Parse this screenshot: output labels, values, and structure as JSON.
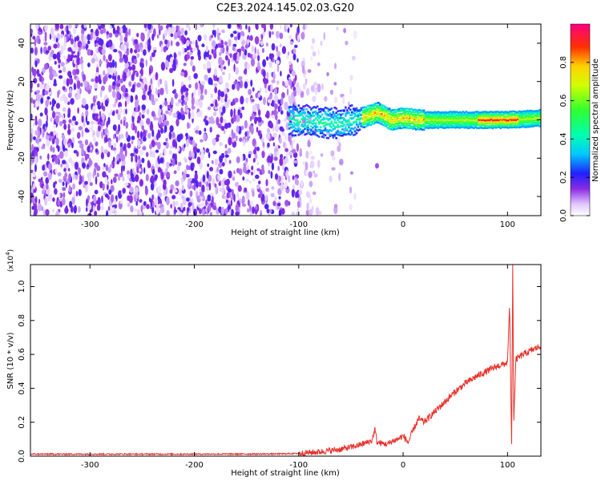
{
  "title": "C2E3.2024.145.02.03.G20",
  "chart_data": [
    {
      "type": "heatmap",
      "xlabel": "Height of straight line (km)",
      "ylabel": "Frequency (Hz)",
      "xlim": [
        -357,
        132
      ],
      "ylim": [
        -50,
        50
      ],
      "xticks": [
        -300,
        -200,
        -100,
        0,
        100
      ],
      "yticks": [
        -40,
        -20,
        0,
        20,
        40
      ],
      "colorbar": {
        "label": "Normalized spectral amplitude",
        "ticks": [
          "0.0",
          "0.2",
          "0.4",
          "0.6",
          "0.8"
        ],
        "tick_values": [
          0.0,
          0.2,
          0.4,
          0.6,
          0.8
        ],
        "range": [
          0,
          1
        ]
      },
      "regions": [
        {
          "x_range": [
            -357,
            -100
          ],
          "freq_range": [
            -50,
            50
          ],
          "amplitude_range": [
            0.02,
            0.25
          ],
          "description_level": "noise"
        },
        {
          "x_range": [
            -100,
            -45
          ],
          "freq_range": [
            -50,
            50
          ],
          "amplitude_range": [
            0.02,
            0.15
          ],
          "description_level": "sparse noise"
        },
        {
          "x_range": [
            -110,
            132
          ],
          "freq_range": [
            -3,
            3
          ],
          "amplitude_range": [
            0.2,
            0.95
          ],
          "description_level": "signal band"
        }
      ],
      "signal_center_freq": [
        {
          "x": -105,
          "freq": 0
        },
        {
          "x": -60,
          "freq": -2
        },
        {
          "x": -40,
          "freq": 1
        },
        {
          "x": -25,
          "freq": 4
        },
        {
          "x": -12,
          "freq": 0
        },
        {
          "x": 0,
          "freq": 1
        },
        {
          "x": 15,
          "freq": 0
        },
        {
          "x": 100,
          "freq": 0
        },
        {
          "x": 132,
          "freq": 1
        }
      ],
      "isolated_feature": {
        "x": -25,
        "freq": -24
      }
    },
    {
      "type": "line",
      "xlabel": "Height of straight line (km)",
      "ylabel": "SNR (10 * v/v)",
      "scale_label": "(x10^4)",
      "xlim": [
        -357,
        132
      ],
      "ylim": [
        0,
        1.13
      ],
      "xticks": [
        -300,
        -200,
        -100,
        0,
        100
      ],
      "yticks": [
        "0.0",
        "0.2",
        "0.4",
        "0.6",
        "0.8",
        "1.0"
      ],
      "ytick_values": [
        0.0,
        0.2,
        0.4,
        0.6,
        0.8,
        1.0
      ],
      "series": [
        {
          "color": "#e8302a",
          "points": [
            [
              -357,
              0.012
            ],
            [
              -300,
              0.012
            ],
            [
              -200,
              0.012
            ],
            [
              -120,
              0.013
            ],
            [
              -100,
              0.016
            ],
            [
              -80,
              0.025
            ],
            [
              -60,
              0.04
            ],
            [
              -45,
              0.06
            ],
            [
              -30,
              0.09
            ],
            [
              -27,
              0.16
            ],
            [
              -25,
              0.08
            ],
            [
              -15,
              0.07
            ],
            [
              -10,
              0.09
            ],
            [
              -5,
              0.1
            ],
            [
              0,
              0.12
            ],
            [
              5,
              0.08
            ],
            [
              10,
              0.16
            ],
            [
              15,
              0.22
            ],
            [
              20,
              0.2
            ],
            [
              30,
              0.26
            ],
            [
              40,
              0.32
            ],
            [
              50,
              0.38
            ],
            [
              60,
              0.43
            ],
            [
              70,
              0.47
            ],
            [
              80,
              0.5
            ],
            [
              90,
              0.53
            ],
            [
              100,
              0.55
            ],
            [
              102,
              0.9
            ],
            [
              104,
              0.05
            ],
            [
              105,
              1.13
            ],
            [
              106,
              0.2
            ],
            [
              108,
              0.57
            ],
            [
              115,
              0.6
            ],
            [
              125,
              0.63
            ],
            [
              132,
              0.65
            ]
          ]
        }
      ]
    }
  ]
}
